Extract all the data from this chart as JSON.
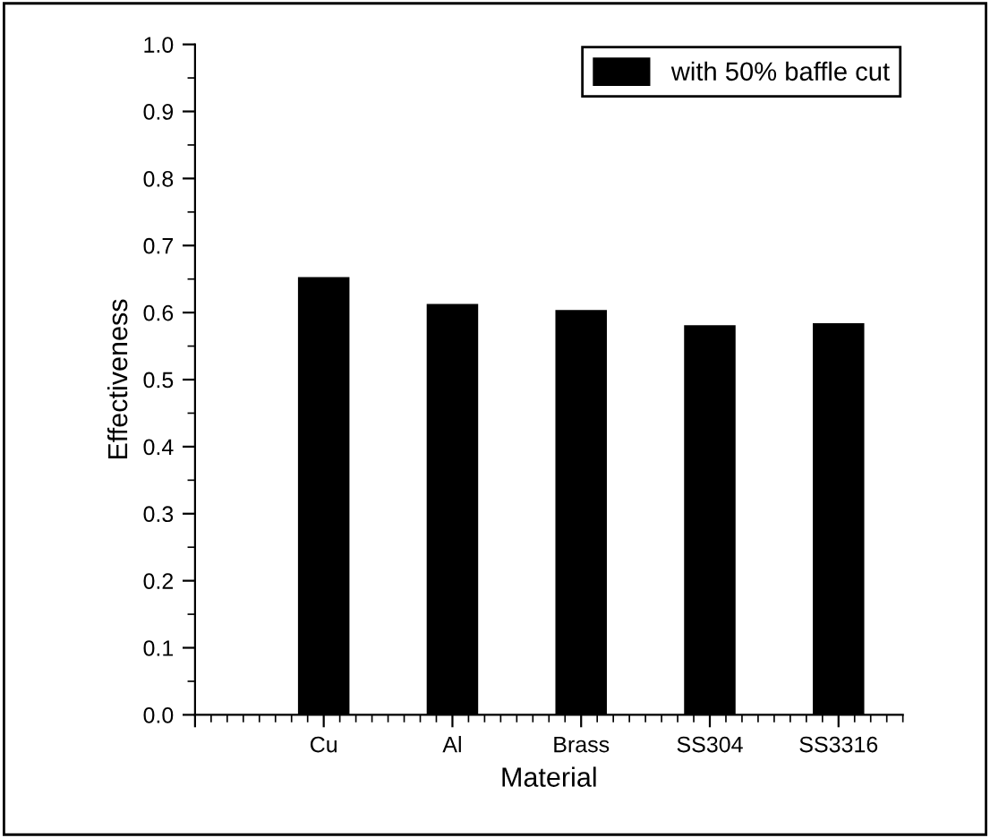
{
  "chart_data": {
    "type": "bar",
    "xlabel": "Material",
    "ylabel": "Effectiveness",
    "categories": [
      null,
      "Cu",
      "Al",
      "Brass",
      "SS304",
      "SS3316"
    ],
    "series": [
      {
        "name": "with 50% baffle cut",
        "color": "#000000",
        "values": [
          null,
          0.653,
          0.613,
          0.604,
          0.581,
          0.584
        ]
      }
    ],
    "ylim": [
      0,
      1.0
    ],
    "yticks": [
      {
        "value": 0,
        "label": "0.0"
      },
      0.1,
      0.2,
      0.3,
      0.4,
      0.5,
      0.6,
      0.7,
      0.8,
      0.9,
      {
        "value": 1,
        "label": "1.0"
      }
    ],
    "grid": false,
    "legend": "top right"
  }
}
